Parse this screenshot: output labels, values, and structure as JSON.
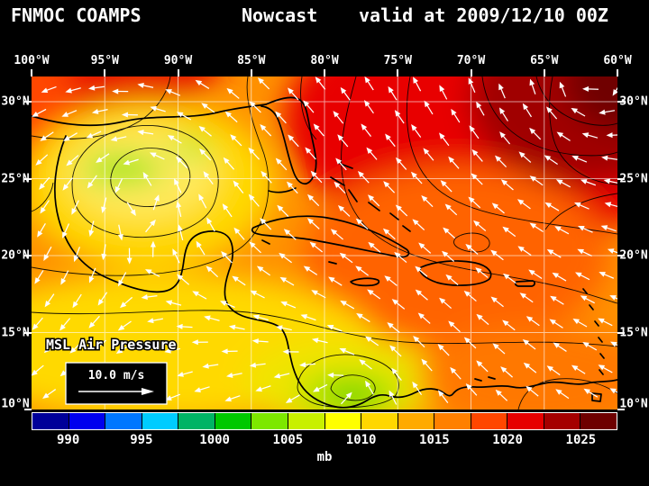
{
  "title": {
    "product": "FNMOC COAMPS",
    "mode": "Nowcast",
    "valid": "valid at 2009/12/10 00Z"
  },
  "axes": {
    "lon_labels": [
      "100°W",
      "95°W",
      "90°W",
      "85°W",
      "80°W",
      "75°W",
      "70°W",
      "65°W",
      "60°W"
    ],
    "lat_labels": [
      "30°N",
      "25°N",
      "20°N",
      "15°N",
      "10°N"
    ]
  },
  "map": {
    "field_label": "MSL Air Pressure",
    "wind_scale_label": "10.0 m/s"
  },
  "colorbar": {
    "units": "mb",
    "ticks": [
      "990",
      "995",
      "1000",
      "1005",
      "1010",
      "1015",
      "1020",
      "1025"
    ],
    "colors": [
      "#000099",
      "#0000ee",
      "#0077ff",
      "#00ccff",
      "#00b465",
      "#00c800",
      "#7de800",
      "#c8f000",
      "#ffff00",
      "#ffd700",
      "#ffaa00",
      "#ff8000",
      "#ff4600",
      "#e60000",
      "#a50000",
      "#6e0000"
    ]
  },
  "chart_data": {
    "type": "heatmap",
    "field": "MSL Air Pressure",
    "units": "mb",
    "valid": "2009/12/10 00Z",
    "lon_range_deg_w": [
      100,
      60
    ],
    "lat_range_deg_n": [
      10,
      30
    ],
    "colorbar_ticks_mb": [
      990,
      995,
      1000,
      1005,
      1010,
      1015,
      1020,
      1025
    ],
    "features": [
      {
        "kind": "high",
        "approx_mb": 1025,
        "near": "28N 62W NW Atlantic, dark red maximum"
      },
      {
        "kind": "low",
        "approx_mb": 1007,
        "near": "26N 93W Gulf of Mexico, yellow-green minimum"
      },
      {
        "kind": "low",
        "approx_mb": 1007,
        "near": "11N 80W SW Caribbean, green minimum"
      },
      {
        "kind": "gradient",
        "approx_mb": 1013,
        "near": "broad orange field over Caribbean and Gulf"
      }
    ],
    "wind_reference_m_s": 10.0,
    "legend_position": "bottom"
  }
}
